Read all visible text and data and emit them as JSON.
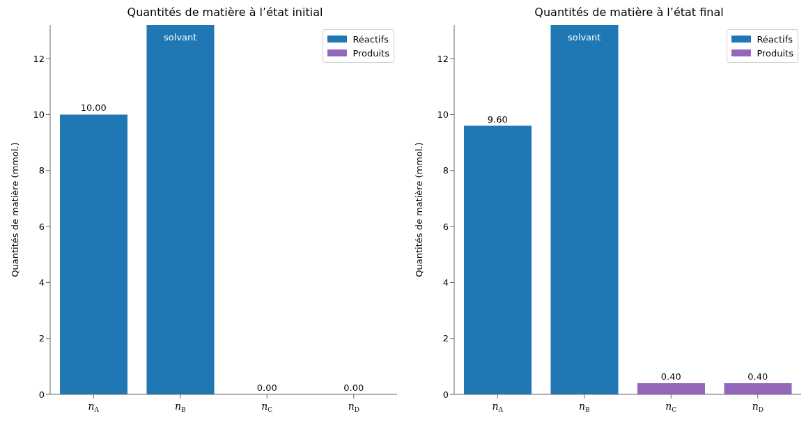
{
  "chart_data": [
    {
      "type": "bar",
      "title": "Quantités de matière à l’état initial",
      "ylabel": "Quantités de matière (mmol.)",
      "categories": [
        "n$_{A}$",
        "n$_{B}$",
        "n$_{C}$",
        "n$_{D}$"
      ],
      "series": [
        {
          "name": "Réactifs",
          "color": "#1f77b4",
          "values": [
            10,
            13.2,
            null,
            null
          ],
          "value_labels": [
            "10.00",
            null,
            null,
            null
          ]
        },
        {
          "name": "Produits",
          "color": "#9467bd",
          "values": [
            null,
            null,
            0,
            0
          ],
          "value_labels": [
            null,
            null,
            "0.00",
            "0.00"
          ]
        }
      ],
      "annotations": [
        "solvant"
      ],
      "ylim": [
        0,
        13.2
      ],
      "yticks": [
        0,
        2,
        4,
        6,
        8,
        10,
        12
      ],
      "grid": false,
      "legend": "top right"
    },
    {
      "type": "bar",
      "title": "Quantités de matière à l’état final",
      "ylabel": "Quantités de matière (mmol.)",
      "categories": [
        "n$_{A}$",
        "n$_{B}$",
        "n$_{C}$",
        "n$_{D}$"
      ],
      "series": [
        {
          "name": "Réactifs",
          "color": "#1f77b4",
          "values": [
            9.6,
            13.2,
            null,
            null
          ],
          "value_labels": [
            "9.60",
            null,
            null,
            null
          ]
        },
        {
          "name": "Produits",
          "color": "#9467bd",
          "values": [
            null,
            null,
            0.4,
            0.4
          ],
          "value_labels": [
            null,
            null,
            "0.40",
            "0.40"
          ]
        }
      ],
      "annotations": [
        "solvant"
      ],
      "ylim": [
        0,
        13.2
      ],
      "yticks": [
        0,
        2,
        4,
        6,
        8,
        10,
        12
      ],
      "grid": false,
      "legend": "top right"
    }
  ]
}
